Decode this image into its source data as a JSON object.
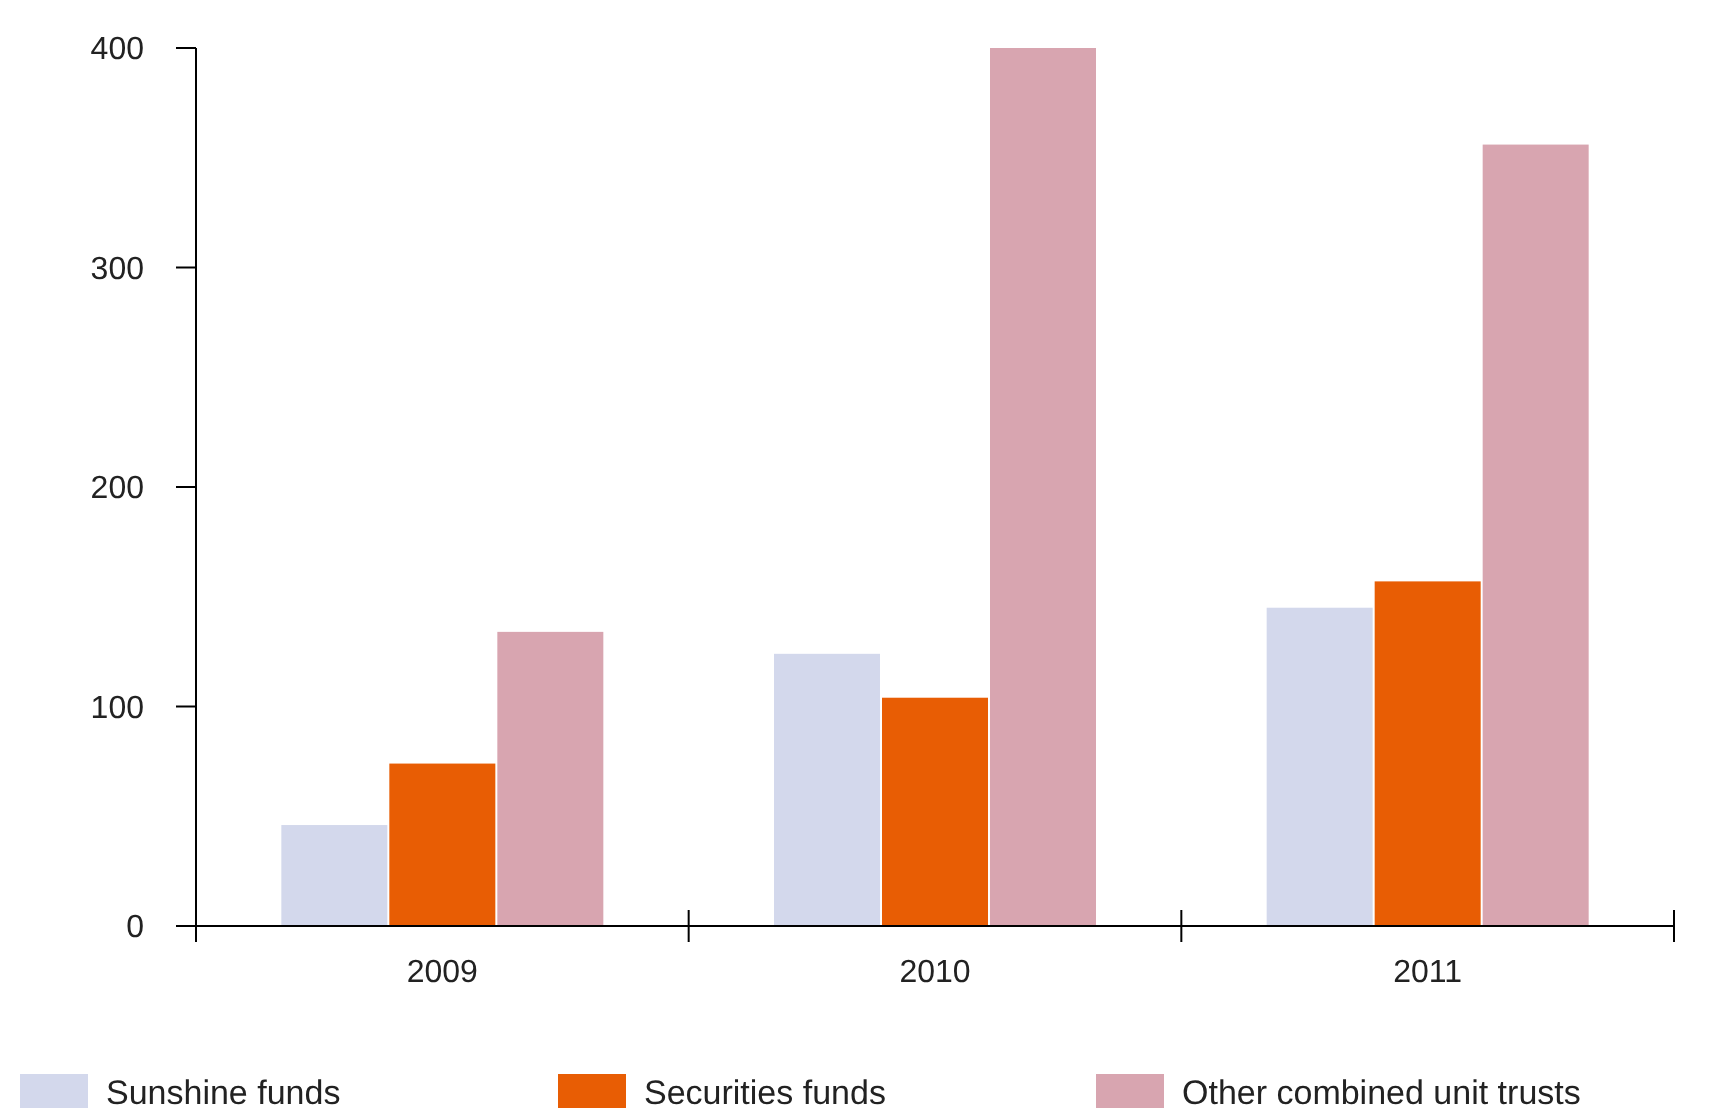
{
  "chart_data": {
    "type": "bar",
    "categories": [
      "2009",
      "2010",
      "2011"
    ],
    "series": [
      {
        "name": "Sunshine funds",
        "color": "#d3d8ec",
        "values": [
          46,
          124,
          145
        ]
      },
      {
        "name": "Securities funds",
        "color": "#e85d04",
        "values": [
          74,
          104,
          157
        ]
      },
      {
        "name": "Other combined unit trusts",
        "color": "#d8a5b0",
        "values": [
          134,
          400,
          356
        ]
      }
    ],
    "ylim": [
      0,
      400
    ],
    "yticks": [
      0,
      100,
      200,
      300,
      400
    ],
    "grid": false,
    "legend": "bottom"
  }
}
